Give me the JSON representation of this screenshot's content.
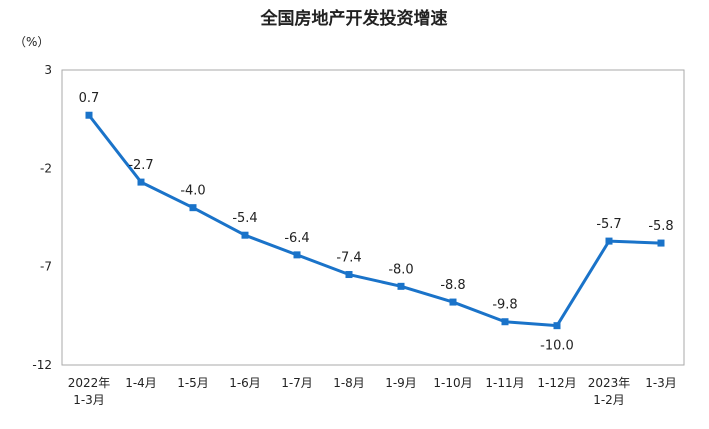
{
  "chart_data": {
    "type": "line",
    "title": "全国房地产开发投资增速",
    "ylabel": "（%）",
    "ylim": [
      -12,
      3
    ],
    "yticks": [
      3,
      -2,
      -7,
      -12
    ],
    "categories": [
      [
        "2022年",
        "1-3月"
      ],
      [
        "1-4月"
      ],
      [
        "1-5月"
      ],
      [
        "1-6月"
      ],
      [
        "1-7月"
      ],
      [
        "1-8月"
      ],
      [
        "1-9月"
      ],
      [
        "1-10月"
      ],
      [
        "1-11月"
      ],
      [
        "1-12月"
      ],
      [
        "2023年",
        "1-2月"
      ],
      [
        "1-3月"
      ]
    ],
    "values": [
      0.7,
      -2.7,
      -4.0,
      -5.4,
      -6.4,
      -7.4,
      -8.0,
      -8.8,
      -9.8,
      -10.0,
      -5.7,
      -5.8
    ],
    "value_labels": [
      "0.7",
      "-2.7",
      "-4.0",
      "-5.4",
      "-6.4",
      "-7.4",
      "-8.0",
      "-8.8",
      "-9.8",
      "-10.0",
      "-5.7",
      "-5.8"
    ],
    "series_color": "#1a73c9",
    "grid": false,
    "legend": "none"
  }
}
